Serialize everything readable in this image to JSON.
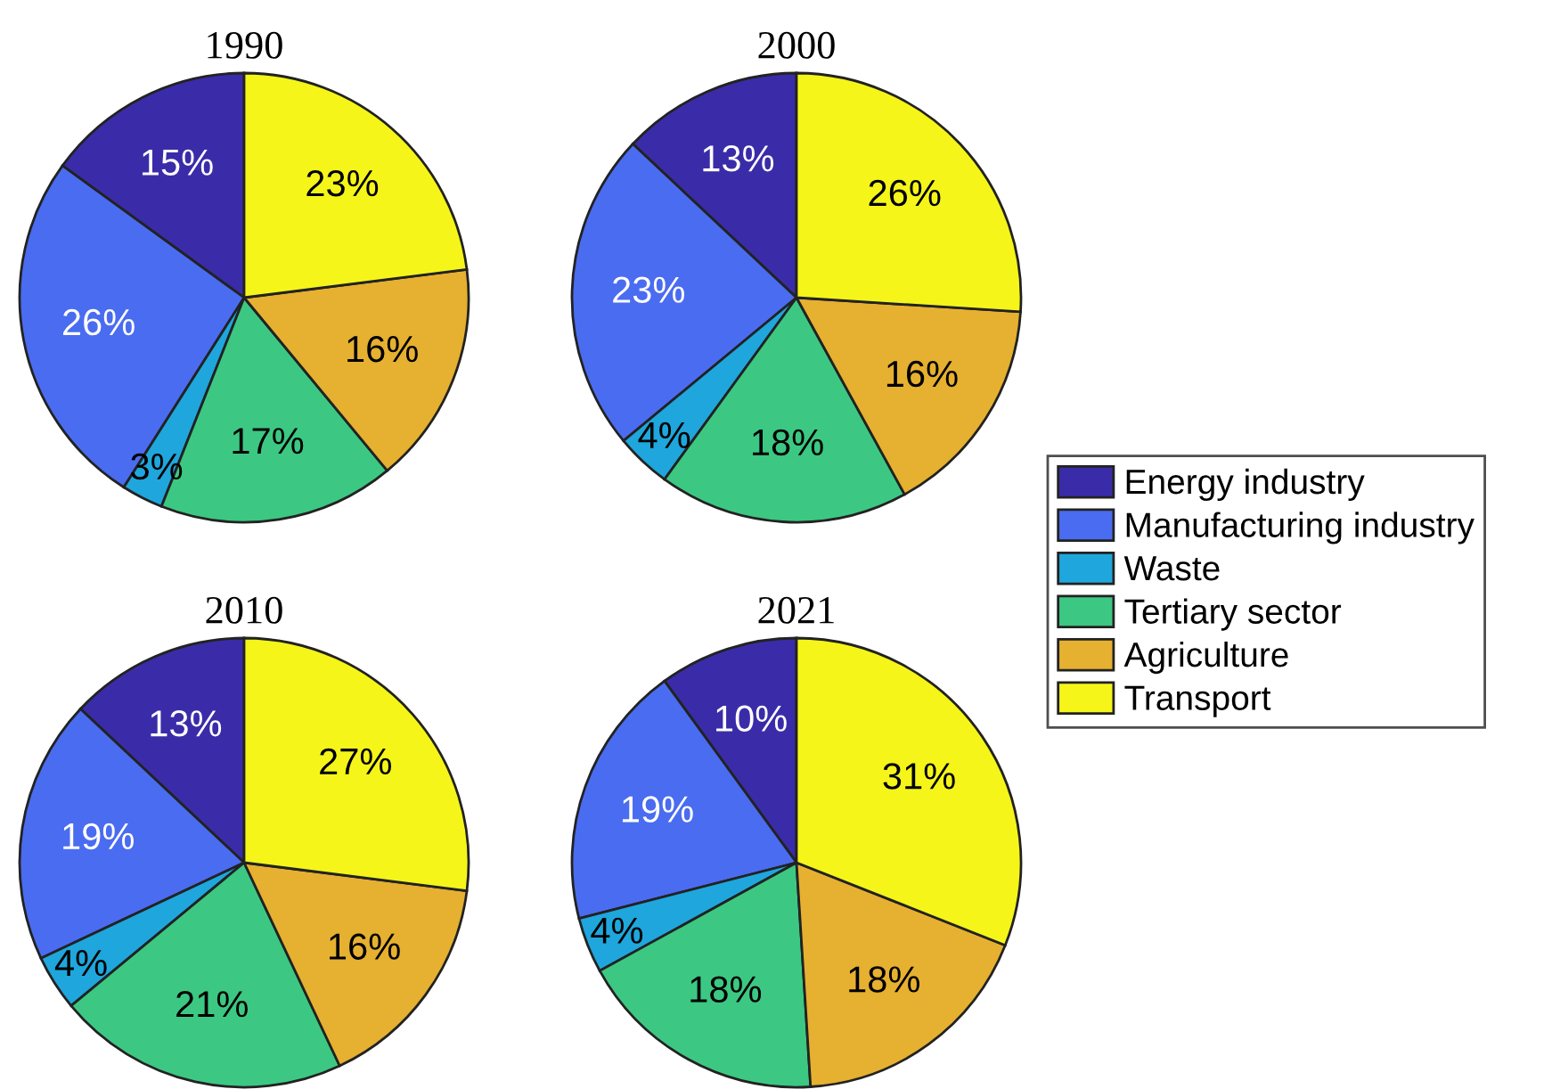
{
  "chart_data": [
    {
      "type": "pie",
      "title": "1990",
      "categories": [
        "Energy industry",
        "Manufacturing industry",
        "Waste",
        "Tertiary sector",
        "Agriculture",
        "Transport"
      ],
      "values": [
        15,
        26,
        3,
        17,
        16,
        23
      ],
      "value_labels": [
        "15%",
        "26%",
        "3%",
        "17%",
        "16%",
        "23%"
      ],
      "colors": [
        "#3a2ca8",
        "#4a6cf0",
        "#1fa6dc",
        "#3cc882",
        "#e6b030",
        "#f5f51a"
      ],
      "legend": "right"
    },
    {
      "type": "pie",
      "title": "2000",
      "values": [
        13,
        23,
        4,
        18,
        16,
        26
      ],
      "value_labels": [
        "13%",
        "23%",
        "4%",
        "18%",
        "16%",
        "26%"
      ],
      "colors": [
        "#3a2ca8",
        "#4a6cf0",
        "#1fa6dc",
        "#3cc882",
        "#e6b030",
        "#f5f51a"
      ]
    },
    {
      "type": "pie",
      "title": "2010",
      "values": [
        13,
        19,
        4,
        21,
        16,
        27
      ],
      "value_labels": [
        "13%",
        "19%",
        "4%",
        "21%",
        "16%",
        "27%"
      ],
      "colors": [
        "#3a2ca8",
        "#4a6cf0",
        "#1fa6dc",
        "#3cc882",
        "#e6b030",
        "#f5f51a"
      ]
    },
    {
      "type": "pie",
      "title": "2021",
      "values": [
        10,
        19,
        4,
        18,
        18,
        31
      ],
      "value_labels": [
        "10%",
        "19%",
        "4%",
        "18%",
        "18%",
        "31%"
      ],
      "colors": [
        "#3a2ca8",
        "#4a6cf0",
        "#1fa6dc",
        "#3cc882",
        "#e6b030",
        "#f5f51a"
      ]
    }
  ]
}
